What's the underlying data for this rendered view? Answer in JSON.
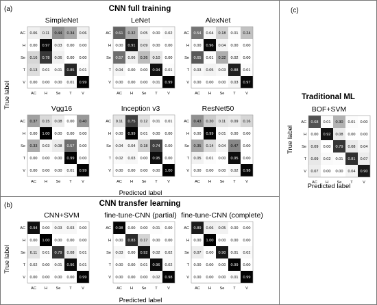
{
  "panels": {
    "a": {
      "label": "(a)",
      "heading": "CNN full training"
    },
    "b": {
      "label": "(b)",
      "heading": "CNN transfer learning"
    },
    "c": {
      "label": "(c)",
      "heading": "Traditional ML"
    }
  },
  "axis": {
    "xlabel": "Predicted label",
    "ylabel": "True label",
    "classes": [
      "AC",
      "H",
      "Se",
      "T",
      "V"
    ]
  },
  "chart_data": [
    {
      "type": "heatmap",
      "title": "SimpleNet",
      "categories": [
        "AC",
        "H",
        "Se",
        "T",
        "V"
      ],
      "values": [
        [
          0.06,
          0.11,
          0.44,
          0.34,
          0.06
        ],
        [
          0.0,
          0.97,
          0.03,
          0.0,
          0.0
        ],
        [
          0.16,
          0.78,
          0.06,
          0.0,
          0.0
        ],
        [
          0.13,
          0.01,
          0.01,
          0.85,
          0.01
        ],
        [
          0.0,
          0.0,
          0.0,
          0.01,
          0.99
        ]
      ]
    },
    {
      "type": "heatmap",
      "title": "LeNet",
      "categories": [
        "AC",
        "H",
        "Se",
        "T",
        "V"
      ],
      "values": [
        [
          0.61,
          0.32,
          0.05,
          0.0,
          0.02
        ],
        [
          0.0,
          0.91,
          0.09,
          0.0,
          0.0
        ],
        [
          0.57,
          0.06,
          0.26,
          0.1,
          0.0
        ],
        [
          0.04,
          0.0,
          0.0,
          0.94,
          0.01
        ],
        [
          0.0,
          0.0,
          0.0,
          0.01,
          0.99
        ]
      ]
    },
    {
      "type": "heatmap",
      "title": "AlexNet",
      "categories": [
        "AC",
        "H",
        "Se",
        "T",
        "V"
      ],
      "values": [
        [
          0.54,
          0.04,
          0.18,
          0.01,
          0.24
        ],
        [
          0.0,
          0.96,
          0.04,
          0.0,
          0.0
        ],
        [
          0.65,
          0.01,
          0.32,
          0.02,
          0.0
        ],
        [
          0.03,
          0.05,
          0.03,
          0.88,
          0.01
        ],
        [
          0.0,
          0.0,
          0.0,
          0.03,
          0.97
        ]
      ]
    },
    {
      "type": "heatmap",
      "title": "Vgg16",
      "categories": [
        "AC",
        "H",
        "Se",
        "T",
        "V"
      ],
      "values": [
        [
          0.37,
          0.15,
          0.08,
          0.0,
          0.4
        ],
        [
          0.0,
          1.0,
          0.0,
          0.0,
          0.0
        ],
        [
          0.33,
          0.03,
          0.08,
          0.57,
          0.0
        ],
        [
          0.0,
          0.0,
          0.0,
          0.99,
          0.0
        ],
        [
          0.0,
          0.0,
          0.0,
          0.01,
          0.99
        ]
      ]
    },
    {
      "type": "heatmap",
      "title": "Inception v3",
      "categories": [
        "AC",
        "H",
        "Se",
        "T",
        "V"
      ],
      "values": [
        [
          0.11,
          0.75,
          0.12,
          0.01,
          0.01
        ],
        [
          0.0,
          0.99,
          0.01,
          0.0,
          0.0
        ],
        [
          0.04,
          0.04,
          0.18,
          0.74,
          0.0
        ],
        [
          0.02,
          0.03,
          0.0,
          0.95,
          0.0
        ],
        [
          0.0,
          0.0,
          0.0,
          0.0,
          1.0
        ]
      ]
    },
    {
      "type": "heatmap",
      "title": "ResNet50",
      "categories": [
        "AC",
        "H",
        "Se",
        "T",
        "V"
      ],
      "values": [
        [
          0.43,
          0.2,
          0.11,
          0.09,
          0.16
        ],
        [
          0.0,
          0.99,
          0.01,
          0.0,
          0.0
        ],
        [
          0.35,
          0.14,
          0.04,
          0.47,
          0.0
        ],
        [
          0.05,
          0.01,
          0.0,
          0.95,
          0.0
        ],
        [
          0.0,
          0.0,
          0.0,
          0.02,
          0.98
        ]
      ]
    },
    {
      "type": "heatmap",
      "title": "CNN+SVM",
      "categories": [
        "AC",
        "H",
        "Se",
        "T",
        "V"
      ],
      "values": [
        [
          0.94,
          0.0,
          0.03,
          0.03,
          0.0
        ],
        [
          0.0,
          1.0,
          0.0,
          0.0,
          0.0
        ],
        [
          0.11,
          0.01,
          0.79,
          0.08,
          0.01
        ],
        [
          0.02,
          0.0,
          0.01,
          0.96,
          0.01
        ],
        [
          0.0,
          0.0,
          0.0,
          0.0,
          0.99
        ]
      ]
    },
    {
      "type": "heatmap",
      "title": "fine-tune-CNN (partial)",
      "categories": [
        "AC",
        "H",
        "Se",
        "T",
        "V"
      ],
      "values": [
        [
          0.98,
          0.0,
          0.0,
          0.01,
          0.0
        ],
        [
          0.0,
          0.83,
          0.17,
          0.0,
          0.0
        ],
        [
          0.03,
          0.0,
          0.92,
          0.02,
          0.02
        ],
        [
          0.0,
          0.0,
          0.01,
          0.96,
          0.02
        ],
        [
          0.0,
          0.0,
          0.0,
          0.02,
          0.98
        ]
      ]
    },
    {
      "type": "heatmap",
      "title": "fine-tune-CNN (complete)",
      "categories": [
        "AC",
        "H",
        "Se",
        "T",
        "V"
      ],
      "values": [
        [
          0.89,
          0.06,
          0.05,
          0.0,
          0.0
        ],
        [
          0.0,
          1.0,
          0.0,
          0.0,
          0.0
        ],
        [
          0.07,
          0.0,
          0.9,
          0.01,
          0.02
        ],
        [
          0.0,
          0.0,
          0.0,
          0.99,
          0.0
        ],
        [
          0.0,
          0.0,
          0.0,
          0.01,
          0.99
        ]
      ]
    },
    {
      "type": "heatmap",
      "title": "BOF+SVM",
      "categories": [
        "AC",
        "H",
        "Se",
        "T",
        "V"
      ],
      "values": [
        [
          0.68,
          0.01,
          0.3,
          0.01,
          0.0
        ],
        [
          0.0,
          0.92,
          0.08,
          0.0,
          0.0
        ],
        [
          0.09,
          0.0,
          0.79,
          0.08,
          0.04
        ],
        [
          0.09,
          0.02,
          0.01,
          0.81,
          0.07
        ],
        [
          0.07,
          0.0,
          0.0,
          0.04,
          0.9
        ]
      ]
    }
  ]
}
